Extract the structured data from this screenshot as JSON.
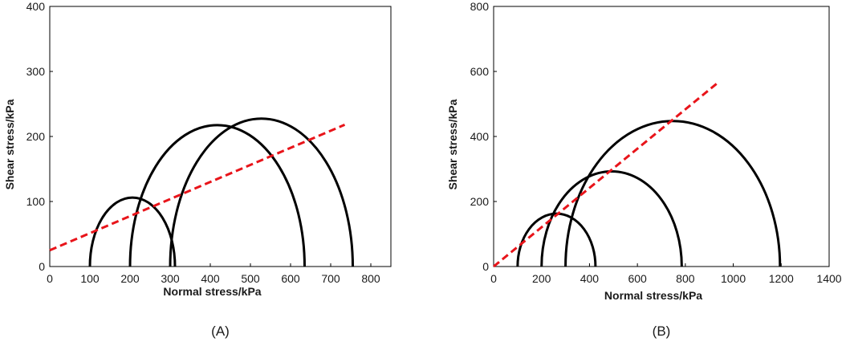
{
  "chart_data": [
    {
      "type": "line",
      "panel_label": "(A)",
      "xlabel": "Normal stress/kPa",
      "ylabel": "Shear stress/kPa",
      "xlim": [
        0,
        850
      ],
      "ylim": [
        0,
        400
      ],
      "x_ticks": [
        0,
        100,
        200,
        300,
        400,
        500,
        600,
        700,
        800
      ],
      "y_ticks": [
        0,
        100,
        200,
        300,
        400
      ],
      "grid": false,
      "mohr_circles": [
        {
          "sigma3": 100,
          "sigma1": 312
        },
        {
          "sigma3": 200,
          "sigma1": 635
        },
        {
          "sigma3": 300,
          "sigma1": 755
        }
      ],
      "failure_envelope": {
        "x": [
          0,
          735
        ],
        "y": [
          25,
          218
        ],
        "style": "dashed",
        "color": "#e8141a"
      },
      "colors": {
        "circles": "#000000",
        "envelope": "#e8141a"
      }
    },
    {
      "type": "line",
      "panel_label": "(B)",
      "xlabel": "Normal stress/kPa",
      "ylabel": "Shear stress/kPa",
      "xlim": [
        0,
        1400
      ],
      "ylim": [
        0,
        800
      ],
      "x_ticks": [
        0,
        200,
        400,
        600,
        800,
        1000,
        1200,
        1400
      ],
      "y_ticks": [
        0,
        200,
        400,
        600,
        800
      ],
      "grid": false,
      "mohr_circles": [
        {
          "sigma3": 100,
          "sigma1": 425
        },
        {
          "sigma3": 200,
          "sigma1": 785
        },
        {
          "sigma3": 300,
          "sigma1": 1195
        }
      ],
      "failure_envelope": {
        "x": [
          0,
          935
        ],
        "y": [
          0,
          565
        ],
        "style": "dashed",
        "color": "#e8141a"
      },
      "colors": {
        "circles": "#000000",
        "envelope": "#e8141a"
      }
    }
  ]
}
